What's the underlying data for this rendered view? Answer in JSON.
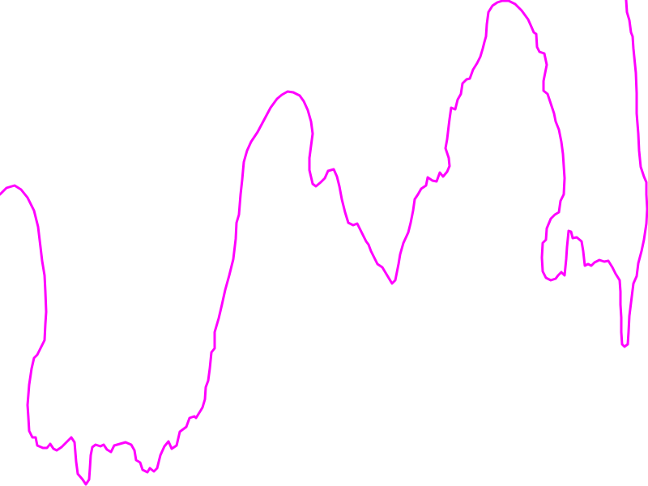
{
  "drawing": {
    "stroke_color": "#ff00ff",
    "background_color": "#ffffff"
  }
}
